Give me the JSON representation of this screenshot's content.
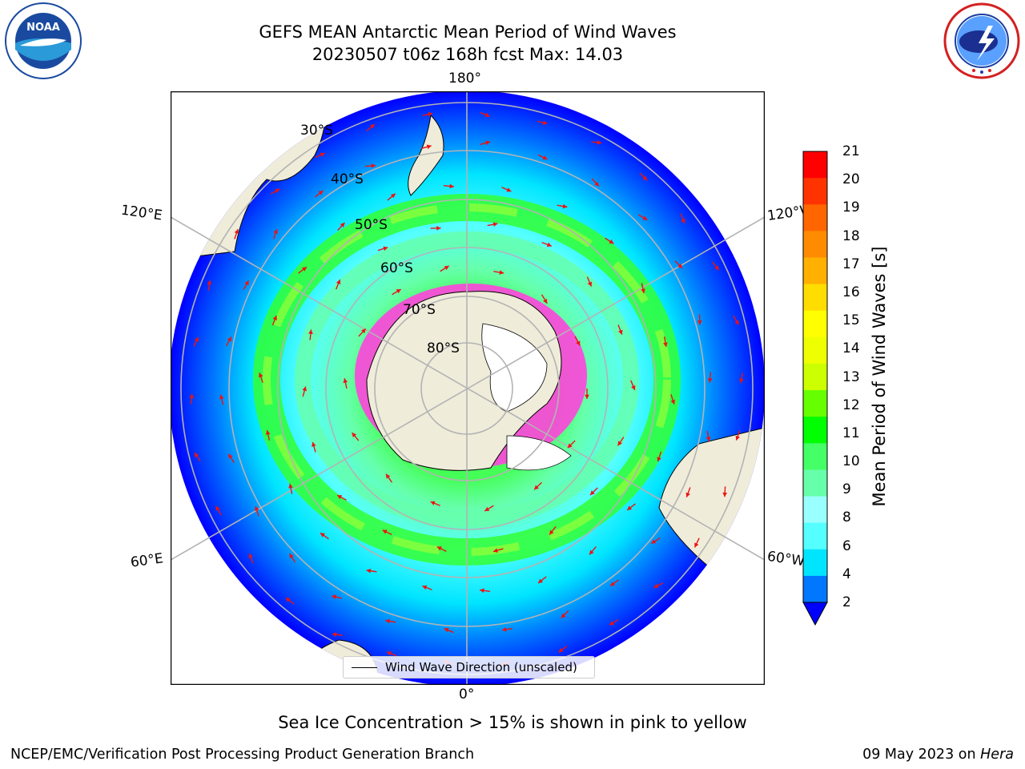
{
  "title": {
    "line1": "GEFS MEAN Antarctic Mean Period of Wind Waves",
    "line2": "20230507 t06z 168h fcst   Max: 14.03"
  },
  "logos": {
    "left": {
      "text": "NOAA",
      "ring_text": "NATIONAL OCEANIC AND ATMOSPHERIC ADMINISTRATION · U.S. DEPARTMENT OF COMMERCE"
    },
    "right": {
      "ring_text": "NATIONAL WEATHER SERVICE"
    }
  },
  "map": {
    "longitude_labels": {
      "top": "180°",
      "bottom": "0°",
      "upper_left": "120°E",
      "upper_right": "120°W",
      "lower_left": "60°E",
      "lower_right": "60°W"
    },
    "latitude_labels": [
      "30°S",
      "40°S",
      "50°S",
      "60°S",
      "70°S",
      "80°S"
    ],
    "legend_label": "Wind Wave Direction (unscaled)",
    "colors": {
      "land": "#efecda",
      "ice_shelf": "#ffffff",
      "sea_ice": "#ff44dd",
      "arrow": "#ee1111",
      "grid": "#b3b3b3"
    }
  },
  "colorbar": {
    "label": "Mean Period of Wind Waves [s]",
    "ticks": [
      "21",
      "20",
      "19",
      "18",
      "17",
      "16",
      "15",
      "14",
      "13",
      "12",
      "11",
      "10",
      "9",
      "8",
      "6",
      "4",
      "2"
    ],
    "colors": [
      "#ff0000",
      "#ff3300",
      "#ff6600",
      "#ff8c00",
      "#ffb000",
      "#ffdd00",
      "#ffff00",
      "#eeff00",
      "#ccff00",
      "#66ff00",
      "#00ff00",
      "#44ff66",
      "#66ffaa",
      "#99ffff",
      "#55ffff",
      "#00e5ff",
      "#0077ff",
      "#0000ff"
    ]
  },
  "caption": "Sea Ice Concentration > 15% is shown in pink to yellow",
  "footer": {
    "left": "NCEP/EMC/Verification Post Processing Product Generation Branch",
    "right_date": "09 May 2023 on ",
    "right_host": "Hera"
  }
}
